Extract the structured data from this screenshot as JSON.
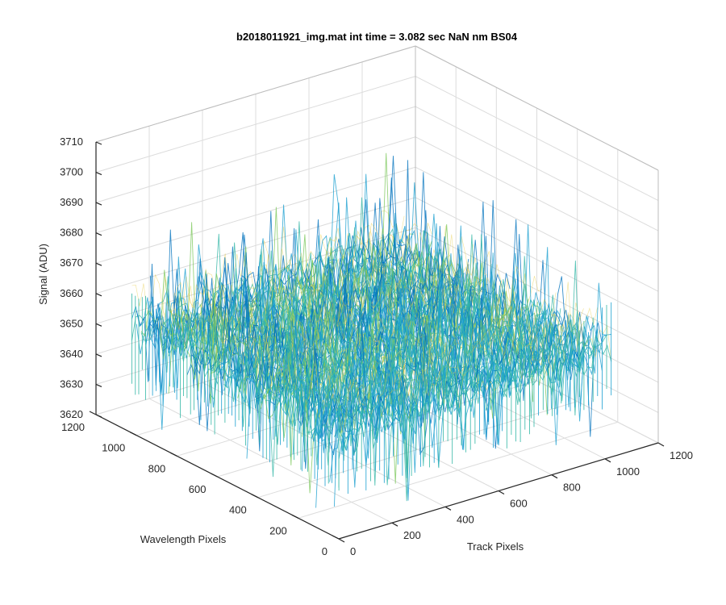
{
  "chart_data": {
    "type": "surface",
    "title": "b2018011921_img.mat int time = 3.082 sec  NaN nm BS04",
    "xlabel": "Track Pixels",
    "ylabel": "Wavelength Pixels",
    "zlabel": "Signal (ADU)",
    "xlim": [
      0,
      1200
    ],
    "ylim": [
      0,
      1200
    ],
    "zlim": [
      3620,
      3710
    ],
    "xticks": [
      0,
      200,
      400,
      600,
      800,
      1000,
      1200
    ],
    "yticks": [
      0,
      200,
      400,
      600,
      800,
      1000,
      1200
    ],
    "zticks": [
      3620,
      3630,
      3640,
      3650,
      3660,
      3670,
      3680,
      3690,
      3700,
      3710
    ],
    "data_extent": {
      "x": [
        1,
        1024
      ],
      "y": [
        1,
        1024
      ]
    },
    "signal_mean": 3655,
    "signal_spread": [
      3630,
      3695
    ],
    "colormap": [
      "#0072bd",
      "#1a9fd0",
      "#33b7a6",
      "#7dc85d",
      "#e6c83c"
    ],
    "grid": true
  }
}
